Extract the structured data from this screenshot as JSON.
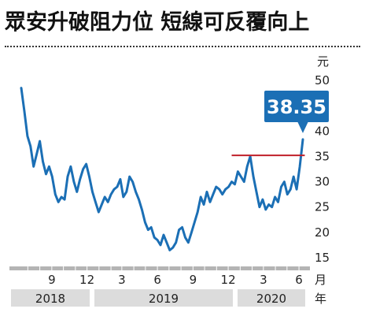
{
  "chart_data": {
    "type": "line",
    "title": "眾安升破阻力位 短線可反覆向上",
    "y_unit_label": "元",
    "x_unit_label": "月",
    "year_unit_label": "年",
    "ylim": [
      15,
      50
    ],
    "y_ticks": [
      15,
      20,
      25,
      30,
      35,
      40,
      45,
      50
    ],
    "x_tick_labels": [
      "9",
      "12",
      "3",
      "6",
      "9",
      "12",
      "3",
      "6"
    ],
    "year_labels": [
      "2018",
      "2019",
      "2020"
    ],
    "grid": false,
    "line_color": "#1b6fb5",
    "resistance": {
      "value": 35.2,
      "color": "#c0202a"
    },
    "callout": {
      "label": "38.35",
      "color": "#1b6fb5"
    },
    "series": [
      {
        "dates": [
          "2018-06-28",
          "2018-07-06",
          "2018-07-14",
          "2018-07-22",
          "2018-07-30",
          "2018-08-07",
          "2018-08-15",
          "2018-08-23",
          "2018-08-31",
          "2018-09-08",
          "2018-09-16",
          "2018-09-24",
          "2018-10-02",
          "2018-10-10",
          "2018-10-18",
          "2018-10-26",
          "2018-11-03",
          "2018-11-11",
          "2018-11-19",
          "2018-11-27",
          "2018-12-05",
          "2018-12-13",
          "2018-12-21",
          "2018-12-29",
          "2019-01-06",
          "2019-01-14",
          "2019-01-22",
          "2019-01-30",
          "2019-02-07",
          "2019-02-15",
          "2019-02-23",
          "2019-03-03",
          "2019-03-11",
          "2019-03-19",
          "2019-03-27",
          "2019-04-04",
          "2019-04-12",
          "2019-04-20",
          "2019-04-28",
          "2019-05-06",
          "2019-05-14",
          "2019-05-22",
          "2019-05-30",
          "2019-06-07",
          "2019-06-15",
          "2019-06-23",
          "2019-07-01",
          "2019-07-09",
          "2019-07-17",
          "2019-07-25",
          "2019-08-02",
          "2019-08-10",
          "2019-08-18",
          "2019-08-26",
          "2019-09-03",
          "2019-09-11",
          "2019-09-19",
          "2019-09-27",
          "2019-10-05",
          "2019-10-13",
          "2019-10-21",
          "2019-10-29",
          "2019-11-06",
          "2019-11-14",
          "2019-11-22",
          "2019-11-30",
          "2019-12-08",
          "2019-12-16",
          "2019-12-24",
          "2020-01-01",
          "2020-01-09",
          "2020-01-17",
          "2020-01-25",
          "2020-02-02",
          "2020-02-10",
          "2020-02-18",
          "2020-02-26",
          "2020-03-05",
          "2020-03-13",
          "2020-03-21",
          "2020-03-29",
          "2020-04-06",
          "2020-04-14",
          "2020-04-22",
          "2020-04-30",
          "2020-05-08",
          "2020-05-16",
          "2020-05-24",
          "2020-06-01",
          "2020-06-09",
          "2020-06-17",
          "2020-06-25"
        ],
        "values": [
          48.5,
          44,
          39,
          37,
          33,
          35.5,
          38,
          34,
          31.5,
          33,
          31,
          27.5,
          26,
          27,
          26.5,
          31,
          33,
          30,
          28,
          30.5,
          32.5,
          33.5,
          31,
          28,
          26,
          24,
          25.5,
          27,
          26,
          27.5,
          28.5,
          29,
          30.5,
          27,
          28,
          31,
          30,
          28,
          26.5,
          24.5,
          22,
          20.5,
          21,
          19,
          18.5,
          17.5,
          19.5,
          18,
          16.5,
          17,
          18,
          20.5,
          21,
          19,
          18,
          20,
          22,
          24,
          27,
          25.5,
          28,
          26,
          27.5,
          29,
          28.5,
          27.5,
          28.5,
          29,
          30,
          29.5,
          32,
          31,
          30,
          33,
          35,
          31,
          28,
          25,
          26.5,
          24.5,
          25.5,
          25,
          27,
          26,
          29,
          30,
          27.5,
          28.5,
          31,
          28.5,
          33,
          38.35
        ]
      }
    ]
  }
}
